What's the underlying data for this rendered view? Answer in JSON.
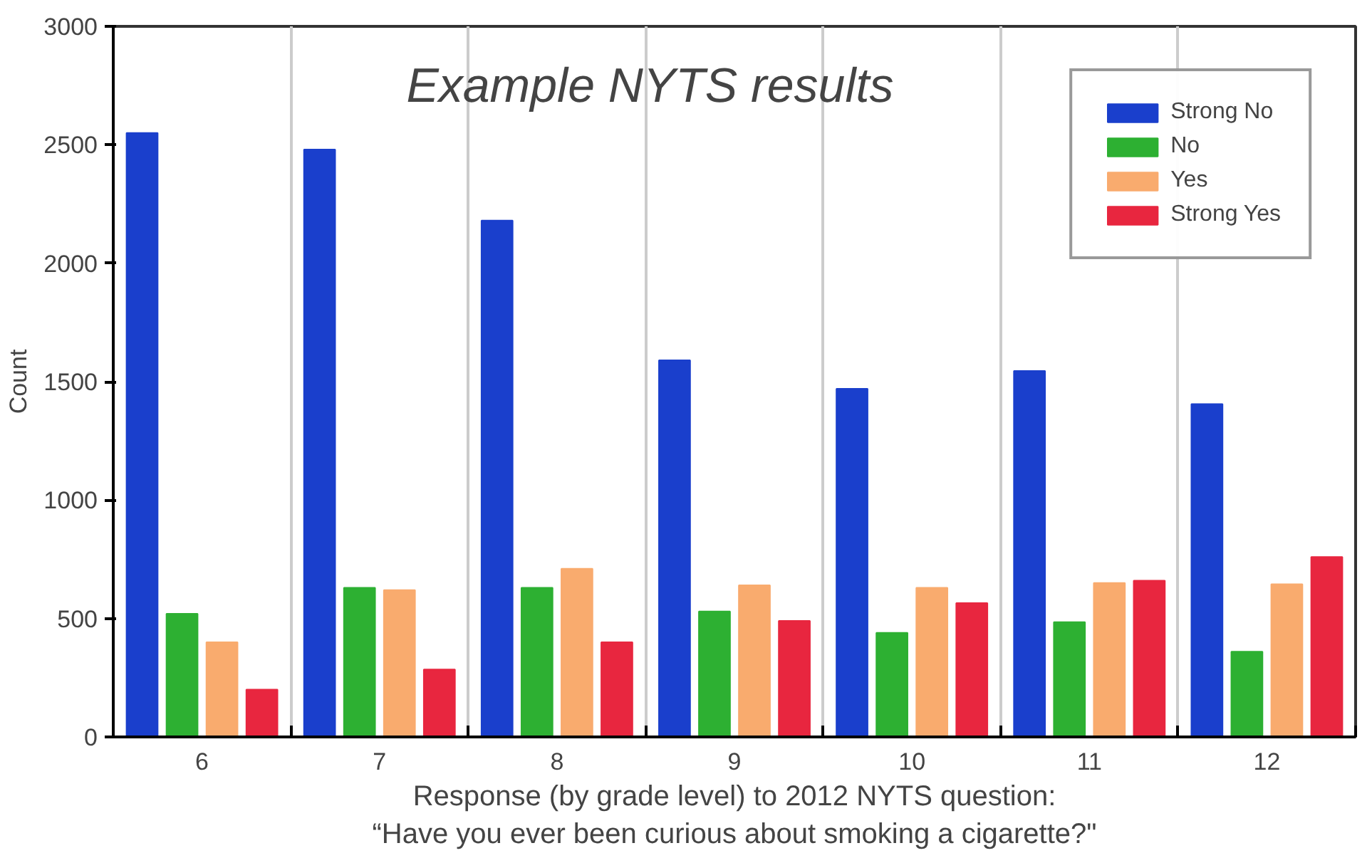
{
  "chart_data": {
    "type": "bar",
    "title": "Example NYTS results",
    "ylabel": "Count",
    "xlabel": "Response (by grade level) to 2012 NYTS question:\n“Have you ever been curious about smoking a cigarette?\"",
    "categories": [
      "6",
      "7",
      "8",
      "9",
      "10",
      "11",
      "12"
    ],
    "series": [
      {
        "name": "Strong No",
        "color": "#1a3fcc",
        "values": [
          2550,
          2480,
          2180,
          1590,
          1470,
          1545,
          1405
        ]
      },
      {
        "name": "No",
        "color": "#2db032",
        "values": [
          520,
          630,
          630,
          530,
          440,
          485,
          360
        ]
      },
      {
        "name": "Yes",
        "color": "#f9ab6e",
        "values": [
          400,
          620,
          710,
          640,
          630,
          650,
          645
        ]
      },
      {
        "name": "Strong Yes",
        "color": "#e8263f",
        "values": [
          200,
          285,
          400,
          490,
          565,
          660,
          760
        ]
      }
    ],
    "ylim": [
      0,
      3000
    ],
    "yticks": [
      0,
      500,
      1000,
      1500,
      2000,
      2500,
      3000
    ],
    "grid": "x",
    "legend": "top right"
  }
}
